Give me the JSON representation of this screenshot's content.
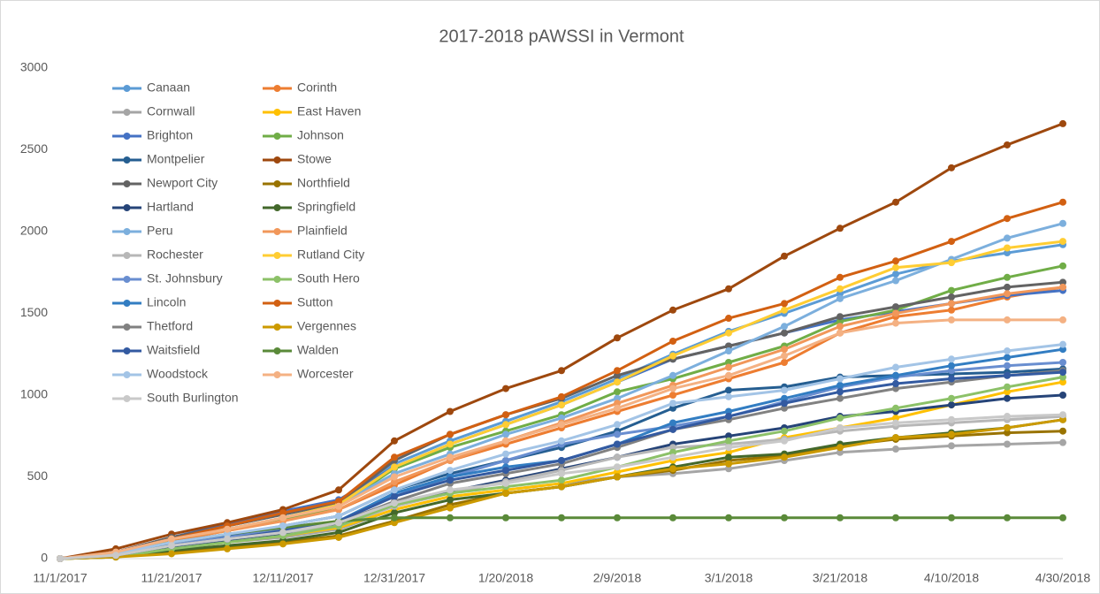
{
  "chart_data": {
    "type": "line",
    "title": "2017-2018 pAWSSI in Vermont",
    "x": [
      "11/1/2017",
      "11/11/2017",
      "11/21/2017",
      "12/1/2017",
      "12/11/2017",
      "12/21/2017",
      "12/31/2017",
      "1/10/2018",
      "1/20/2018",
      "1/30/2018",
      "2/9/2018",
      "2/19/2018",
      "3/1/2018",
      "3/11/2018",
      "3/21/2018",
      "3/31/2018",
      "4/10/2018",
      "4/20/2018",
      "4/30/2018"
    ],
    "xticks": [
      "11/1/2017",
      "11/21/2017",
      "12/11/2017",
      "12/31/2017",
      "1/20/2018",
      "2/9/2018",
      "3/1/2018",
      "3/21/2018",
      "4/10/2018",
      "4/30/2018"
    ],
    "ylim": [
      0,
      3000
    ],
    "yticks": [
      0,
      500,
      1000,
      1500,
      2000,
      2500,
      3000
    ],
    "grid": false,
    "legend": "top-left",
    "series": [
      {
        "name": "Canaan",
        "color": "#5b9bd5",
        "values": [
          0,
          40,
          130,
          200,
          270,
          340,
          580,
          720,
          840,
          960,
          1100,
          1250,
          1390,
          1500,
          1620,
          1740,
          1820,
          1870,
          1920
        ]
      },
      {
        "name": "Corinth",
        "color": "#ed7d31",
        "values": [
          0,
          30,
          110,
          170,
          240,
          300,
          450,
          600,
          700,
          800,
          900,
          1000,
          1100,
          1200,
          1380,
          1480,
          1520,
          1600,
          1660
        ]
      },
      {
        "name": "Cornwall",
        "color": "#a5a5a5",
        "values": [
          0,
          20,
          70,
          100,
          130,
          180,
          300,
          380,
          420,
          460,
          500,
          520,
          550,
          600,
          650,
          670,
          690,
          700,
          710
        ]
      },
      {
        "name": "East Haven",
        "color": "#ffc000",
        "values": [
          0,
          10,
          60,
          100,
          140,
          190,
          300,
          380,
          420,
          460,
          530,
          600,
          650,
          740,
          800,
          860,
          940,
          1020,
          1080
        ]
      },
      {
        "name": "Brighton",
        "color": "#4472c4",
        "values": [
          0,
          40,
          130,
          210,
          290,
          360,
          560,
          700,
          820,
          940,
          1080,
          1220,
          1300,
          1380,
          1460,
          1510,
          1560,
          1610,
          1640
        ]
      },
      {
        "name": "Johnson",
        "color": "#70ad47",
        "values": [
          0,
          30,
          120,
          180,
          240,
          320,
          550,
          680,
          780,
          880,
          1020,
          1100,
          1200,
          1300,
          1450,
          1520,
          1640,
          1720,
          1790
        ]
      },
      {
        "name": "Montpelier",
        "color": "#255e91",
        "values": [
          0,
          20,
          90,
          140,
          200,
          260,
          420,
          520,
          600,
          680,
          780,
          920,
          1030,
          1050,
          1110,
          1120,
          1130,
          1140,
          1160
        ]
      },
      {
        "name": "Stowe",
        "color": "#9e480e",
        "values": [
          0,
          60,
          150,
          220,
          300,
          420,
          720,
          900,
          1040,
          1150,
          1350,
          1520,
          1650,
          1850,
          2020,
          2180,
          2390,
          2530,
          2660
        ]
      },
      {
        "name": "Newport City",
        "color": "#636363",
        "values": [
          0,
          40,
          130,
          200,
          270,
          340,
          600,
          760,
          880,
          980,
          1120,
          1220,
          1300,
          1380,
          1480,
          1540,
          1600,
          1660,
          1690
        ]
      },
      {
        "name": "Northfield",
        "color": "#997300",
        "values": [
          0,
          10,
          40,
          70,
          100,
          140,
          230,
          330,
          400,
          440,
          500,
          540,
          600,
          630,
          690,
          730,
          750,
          770,
          780
        ]
      },
      {
        "name": "Hartland",
        "color": "#264478",
        "values": [
          0,
          20,
          70,
          110,
          150,
          210,
          330,
          410,
          480,
          550,
          620,
          700,
          750,
          800,
          870,
          900,
          940,
          980,
          1000
        ]
      },
      {
        "name": "Springfield",
        "color": "#43682b",
        "values": [
          0,
          10,
          50,
          80,
          110,
          160,
          280,
          360,
          400,
          440,
          500,
          560,
          620,
          640,
          700,
          740,
          770,
          800,
          850
        ]
      },
      {
        "name": "Peru",
        "color": "#7cafdd",
        "values": [
          0,
          30,
          120,
          180,
          250,
          330,
          520,
          640,
          760,
          860,
          980,
          1120,
          1270,
          1420,
          1590,
          1700,
          1830,
          1960,
          2050
        ]
      },
      {
        "name": "Plainfield",
        "color": "#f1975a",
        "values": [
          0,
          30,
          120,
          170,
          230,
          300,
          470,
          600,
          720,
          830,
          950,
          1060,
          1170,
          1280,
          1420,
          1500,
          1560,
          1620,
          1660
        ]
      },
      {
        "name": "Rochester",
        "color": "#b7b7b7",
        "values": [
          0,
          20,
          80,
          120,
          160,
          200,
          320,
          400,
          470,
          540,
          620,
          680,
          700,
          730,
          780,
          810,
          830,
          850,
          870
        ]
      },
      {
        "name": "Rutland City",
        "color": "#ffcd33",
        "values": [
          0,
          30,
          120,
          180,
          250,
          330,
          560,
          700,
          820,
          940,
          1080,
          1240,
          1380,
          1520,
          1650,
          1780,
          1810,
          1900,
          1940
        ]
      },
      {
        "name": "St. Johnsbury",
        "color": "#698ed0",
        "values": [
          0,
          20,
          90,
          130,
          180,
          230,
          380,
          500,
          600,
          700,
          760,
          810,
          870,
          960,
          1050,
          1110,
          1150,
          1180,
          1200
        ]
      },
      {
        "name": "South Hero",
        "color": "#8cc168",
        "values": [
          0,
          10,
          60,
          100,
          140,
          200,
          330,
          400,
          440,
          480,
          560,
          650,
          720,
          780,
          860,
          920,
          980,
          1050,
          1110
        ]
      },
      {
        "name": "Lincoln",
        "color": "#327dc2",
        "values": [
          0,
          20,
          80,
          120,
          170,
          230,
          400,
          500,
          560,
          600,
          700,
          830,
          900,
          980,
          1060,
          1120,
          1180,
          1230,
          1280
        ]
      },
      {
        "name": "Sutton",
        "color": "#d26012",
        "values": [
          0,
          40,
          120,
          200,
          280,
          350,
          620,
          760,
          880,
          990,
          1150,
          1330,
          1470,
          1560,
          1720,
          1820,
          1940,
          2080,
          2180
        ]
      },
      {
        "name": "Thetford",
        "color": "#818181",
        "values": [
          0,
          20,
          80,
          120,
          170,
          220,
          350,
          460,
          520,
          580,
          680,
          790,
          850,
          920,
          980,
          1040,
          1080,
          1120,
          1150
        ]
      },
      {
        "name": "Vergennes",
        "color": "#cc9a00",
        "values": [
          0,
          10,
          30,
          60,
          90,
          130,
          220,
          310,
          400,
          440,
          500,
          550,
          580,
          620,
          680,
          740,
          760,
          800,
          850
        ]
      },
      {
        "name": "Waitsfield",
        "color": "#335aa1",
        "values": [
          0,
          20,
          80,
          120,
          170,
          230,
          380,
          480,
          540,
          600,
          700,
          790,
          870,
          950,
          1020,
          1070,
          1100,
          1120,
          1140
        ]
      },
      {
        "name": "Walden",
        "color": "#5a8a39",
        "values": [
          0,
          30,
          100,
          150,
          190,
          230,
          250,
          250,
          250,
          250,
          250,
          250,
          250,
          250,
          250,
          250,
          250,
          250,
          250
        ]
      },
      {
        "name": "Woodstock",
        "color": "#a3c4e6",
        "values": [
          0,
          30,
          100,
          150,
          200,
          260,
          420,
          540,
          640,
          720,
          820,
          950,
          990,
          1030,
          1100,
          1170,
          1220,
          1270,
          1310
        ]
      },
      {
        "name": "Worcester",
        "color": "#f4b183",
        "values": [
          0,
          40,
          120,
          180,
          250,
          320,
          500,
          620,
          720,
          820,
          920,
          1040,
          1120,
          1240,
          1380,
          1440,
          1460,
          1460,
          1460
        ]
      },
      {
        "name": "South Burlington",
        "color": "#c9c9c9",
        "values": [
          0,
          20,
          80,
          120,
          160,
          220,
          340,
          420,
          460,
          520,
          560,
          620,
          680,
          720,
          800,
          830,
          850,
          870,
          880
        ]
      }
    ]
  }
}
